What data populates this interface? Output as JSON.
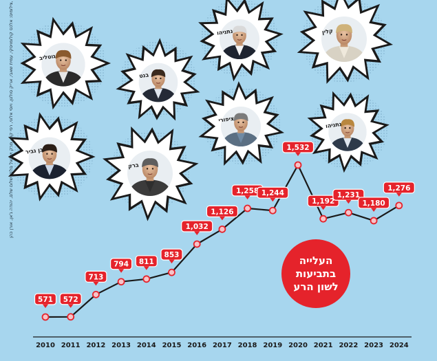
{
  "chart_data": {
    "type": "line",
    "title": "העלייה בתביעות לשון הרע",
    "x": [
      "2010",
      "2011",
      "2012",
      "2013",
      "2014",
      "2015",
      "2016",
      "2017",
      "2018",
      "2019",
      "2020",
      "2021",
      "2022",
      "2023",
      "2024"
    ],
    "series": [
      {
        "values": [
          571,
          572,
          713,
          794,
          811,
          853,
          1032,
          1126,
          1258,
          1244,
          1532,
          1192,
          1231,
          1180,
          1276
        ]
      }
    ],
    "value_labels": [
      "571",
      "572",
      "713",
      "794",
      "811",
      "853",
      "1,032",
      "1,126",
      "1,258",
      "1,244",
      "1,532",
      "1,192",
      "1,231",
      "1,180",
      "1,276"
    ],
    "xlabel": "",
    "ylabel": "",
    "ylim": [
      500,
      1600
    ],
    "grid": false,
    "legend": "none"
  },
  "people": [
    {
      "id": "gotliv",
      "name": "גוטליב"
    },
    {
      "id": "bennett",
      "name": "בנט"
    },
    {
      "id": "netanyahu",
      "name": "נתניהו"
    },
    {
      "id": "kalin",
      "name": "קלין"
    },
    {
      "id": "bengvir",
      "name": "בן גביר"
    },
    {
      "id": "barak",
      "name": "ברק"
    },
    {
      "id": "tsimri",
      "name": "ציפורי"
    },
    {
      "id": "yair",
      "name": "נתניהו"
    }
  ],
  "credit": "צילומים: אלכס קולומויסקי, עמית שאבי, אריק סולטן, ויוסי אלוני, רפי קוץ, מרק ישראל סלם, שלום שלם, יהודה ג'אן, אורן כהן, AP/ANDREW CABALLERO-REYNOLDS",
  "colors": {
    "background": "#a7d6ee",
    "line": "#1a1a1a",
    "label_fill": "#e5232b",
    "marker_fill": "#f6c3c8",
    "title_circle": "#e5232b"
  }
}
